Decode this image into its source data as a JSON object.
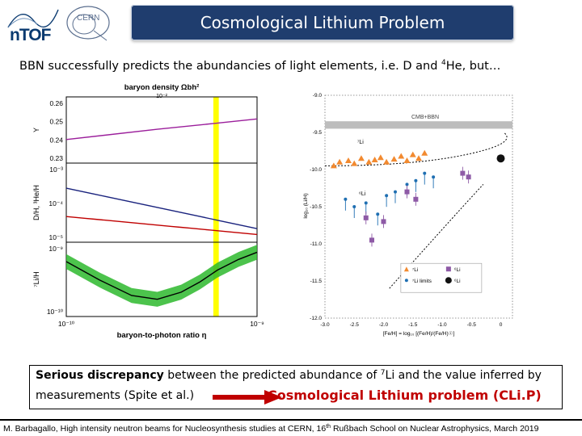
{
  "header": {
    "title": "Cosmological Lithium Problem",
    "logo_ntof_text": "nTOF",
    "logo_cern_text": "CERN"
  },
  "intro": {
    "text_before": "BBN successfully predicts the abundancies of light elements, i.e. D and ",
    "sup": "4",
    "text_after": "He, but…"
  },
  "chart_data": [
    {
      "type": "line",
      "title": "baryon density Ωbh²",
      "top_axis_label": "baryon density Ωbh²",
      "top_axis_tick": "10⁻²",
      "xlabel": "baryon-to-photon ratio η",
      "x_scale": "log",
      "xlim": [
        1e-10,
        1e-09
      ],
      "x_tick_labels": [
        "10⁻¹⁰",
        "10⁻⁹"
      ],
      "highlight_band": {
        "x": [
          5.9e-10,
          6.3e-10
        ],
        "color": "#ffff00"
      },
      "panels": [
        {
          "ylabel": "Y",
          "y_tick_labels": [
            "0.26",
            "0.25",
            "0.24",
            "0.23"
          ],
          "ylim": [
            0.22,
            0.265
          ],
          "series": [
            {
              "color": "#9b1e9b",
              "x": [
                1e-10,
                3e-10,
                6e-10,
                1e-09
              ],
              "y": [
                0.236,
                0.243,
                0.247,
                0.25
              ]
            }
          ]
        },
        {
          "ylabel": "D/H, ³He/H",
          "y_tick_labels": [
            "10⁻³",
            "10⁻⁴",
            "10⁻⁵"
          ],
          "y_scale": "log",
          "ylim": [
            5e-06,
            0.002
          ],
          "series": [
            {
              "color": "#1a237e",
              "x": [
                1e-10,
                1e-09
              ],
              "y": [
                0.0003,
                1.4e-05
              ]
            },
            {
              "color": "#c00000",
              "x": [
                1e-10,
                1e-09
              ],
              "y": [
                3.5e-05,
                9e-06
              ]
            }
          ]
        },
        {
          "ylabel": "⁷Li/H",
          "y_tick_labels": [
            "10⁻⁹",
            "10⁻¹⁰"
          ],
          "y_scale": "log",
          "ylim": [
            6e-11,
            1.2e-09
          ],
          "band_color": "#2db82d",
          "series": [
            {
              "color": "#000000",
              "x": [
                1e-10,
                1.5e-10,
                2.2e-10,
                3e-10,
                4e-10,
                5e-10,
                6.2e-10,
                8e-10,
                1e-09
              ],
              "y": [
                5.5e-10,
                2.6e-10,
                1.4e-10,
                1.2e-10,
                1.6e-10,
                2.4e-10,
                3.9e-10,
                6e-10,
                8e-10
              ]
            }
          ]
        }
      ]
    },
    {
      "type": "scatter",
      "xlabel": "[Fe/H] = log₁₀ [(Fe/H)/(Fe/H)☉]",
      "ylabel": "log₁₀ (Li/H)",
      "xlim": [
        -3.0,
        0.2
      ],
      "ylim": [
        -12.0,
        -9.0
      ],
      "x_tick_labels": [
        "-3.0",
        "-2.5",
        "-2.0",
        "-1.5",
        "-1.0",
        "-0.5",
        "0"
      ],
      "y_tick_labels": [
        "-9.0",
        "-9.5",
        "-10.0",
        "-10.5",
        "-11.0",
        "-11.5",
        "-12.0"
      ],
      "band_label": "CMB+BBN",
      "band": [
        -9.45,
        -9.35
      ],
      "annotations": [
        "⁷Li",
        "⁶Li"
      ],
      "series": [
        {
          "name": "⁷Li",
          "marker": "triangle",
          "color": "#f28a30",
          "x": [
            -2.85,
            -2.75,
            -2.6,
            -2.5,
            -2.38,
            -2.25,
            -2.15,
            -2.05,
            -1.95,
            -1.82,
            -1.7,
            -1.6,
            -1.5,
            -1.4,
            -1.3
          ],
          "y": [
            -9.95,
            -9.9,
            -9.88,
            -9.92,
            -9.85,
            -9.9,
            -9.87,
            -9.84,
            -9.9,
            -9.86,
            -9.82,
            -9.88,
            -9.8,
            -9.85,
            -9.78
          ]
        },
        {
          "name": "⁷Li limits",
          "marker": "circle-arrow",
          "color": "#1f6fb2",
          "x": [
            -2.65,
            -2.5,
            -2.3,
            -2.1,
            -1.95,
            -1.8,
            -1.6,
            -1.45,
            -1.3,
            -1.15
          ],
          "y": [
            -10.4,
            -10.5,
            -10.45,
            -10.6,
            -10.35,
            -10.3,
            -10.2,
            -10.15,
            -10.05,
            -10.1
          ]
        },
        {
          "name": "⁶Li",
          "marker": "square",
          "color": "#8e5aa6",
          "x": [
            -2.3,
            -2.2,
            -2.0,
            -1.6,
            -1.45,
            -0.65,
            -0.55
          ],
          "y": [
            -10.65,
            -10.95,
            -10.7,
            -10.3,
            -10.4,
            -10.05,
            -10.1
          ]
        },
        {
          "name": "⁶Li",
          "marker": "big-circle",
          "color": "#111111",
          "x": [
            0.0
          ],
          "y": [
            -9.85
          ]
        }
      ],
      "legend": {
        "placement": "bottom-right",
        "entries": [
          "⁷Li",
          "⁷Li limits",
          "⁶Li",
          "⁶Li"
        ]
      }
    }
  ],
  "box": {
    "bold": "Serious discrepancy",
    "text1": "  between the predicted abundance of ",
    "sup": "7",
    "li": "Li",
    "text2": " and the value inferred by",
    "line2": "measurements (Spite et al.)",
    "clip": "Cosmological  Lithium problem (CLi.P)"
  },
  "footer": {
    "text1": "M. Barbagallo, High intensity neutron beams for Nucleosynthesis studies at CERN, 16",
    "sup": "th",
    "text2": " Rußbach School on Nuclear Astrophysics, March  2019"
  },
  "colors": {
    "title_bg": "#1f3d6e",
    "clip_red": "#c00000",
    "yellow_band": "#ffff00",
    "green_band": "#2db82d"
  }
}
